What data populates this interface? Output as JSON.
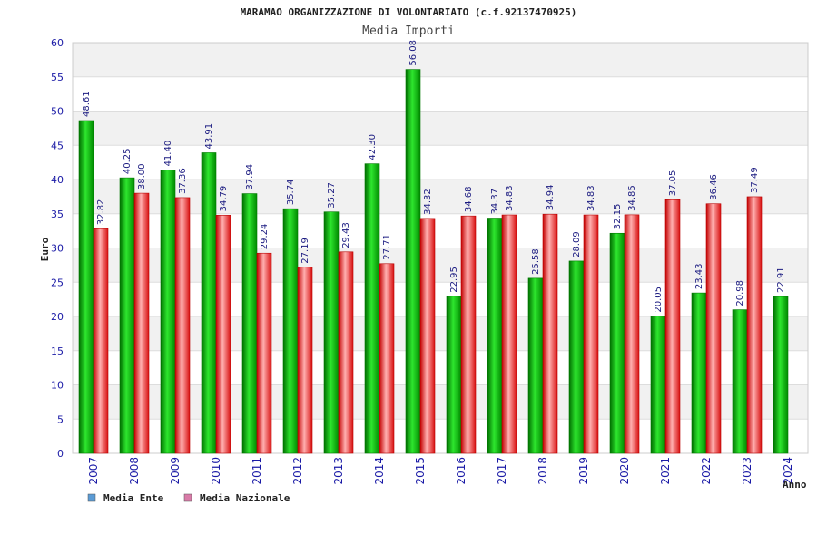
{
  "chart_data": {
    "type": "bar",
    "title": "MARAMAO ORGANIZZAZIONE DI VOLONTARIATO (c.f.92137470925)",
    "subtitle": "Media Importi",
    "ylabel": "Euro",
    "xlabel": "Anno",
    "ylim": [
      0,
      60
    ],
    "ytick_step": 5,
    "yticks": [
      "0",
      "5",
      "10",
      "15",
      "20",
      "25",
      "30",
      "35",
      "40",
      "45",
      "50",
      "55",
      "60"
    ],
    "grid": true,
    "legend_position": "bottom-left",
    "categories": [
      "2007",
      "2008",
      "2009",
      "2010",
      "2011",
      "2012",
      "2013",
      "2014",
      "2015",
      "2016",
      "2017",
      "2018",
      "2019",
      "2020",
      "2021",
      "2022",
      "2023",
      "2024"
    ],
    "series": [
      {
        "name": "Media Ente",
        "legend_color": "#5b9bd5",
        "bar_color": "#00b400",
        "values": [
          48.61,
          40.25,
          41.4,
          43.91,
          37.94,
          35.74,
          35.27,
          42.3,
          56.08,
          22.95,
          34.37,
          25.58,
          28.09,
          32.15,
          20.05,
          23.43,
          20.98,
          22.91
        ],
        "labels": [
          "48.61",
          "40.25",
          "41.40",
          "43.91",
          "37.94",
          "35.74",
          "35.27",
          "42.30",
          "56.08",
          "22.95",
          "34.37",
          "25.58",
          "28.09",
          "32.15",
          "20.05",
          "23.43",
          "20.98",
          "22.91"
        ]
      },
      {
        "name": "Media Nazionale",
        "legend_color": "#d97ba8",
        "bar_color": "#e82020",
        "values": [
          32.82,
          38.0,
          37.36,
          34.79,
          29.24,
          27.19,
          29.43,
          27.71,
          34.32,
          34.68,
          34.83,
          34.94,
          34.83,
          34.85,
          37.05,
          36.46,
          37.49,
          null
        ],
        "labels": [
          "32.82",
          "38.00",
          "37.36",
          "34.79",
          "29.24",
          "27.19",
          "29.43",
          "27.71",
          "34.32",
          "34.68",
          "34.83",
          "34.94",
          "34.83",
          "34.85",
          "37.05",
          "36.46",
          "37.49",
          ""
        ]
      }
    ]
  }
}
